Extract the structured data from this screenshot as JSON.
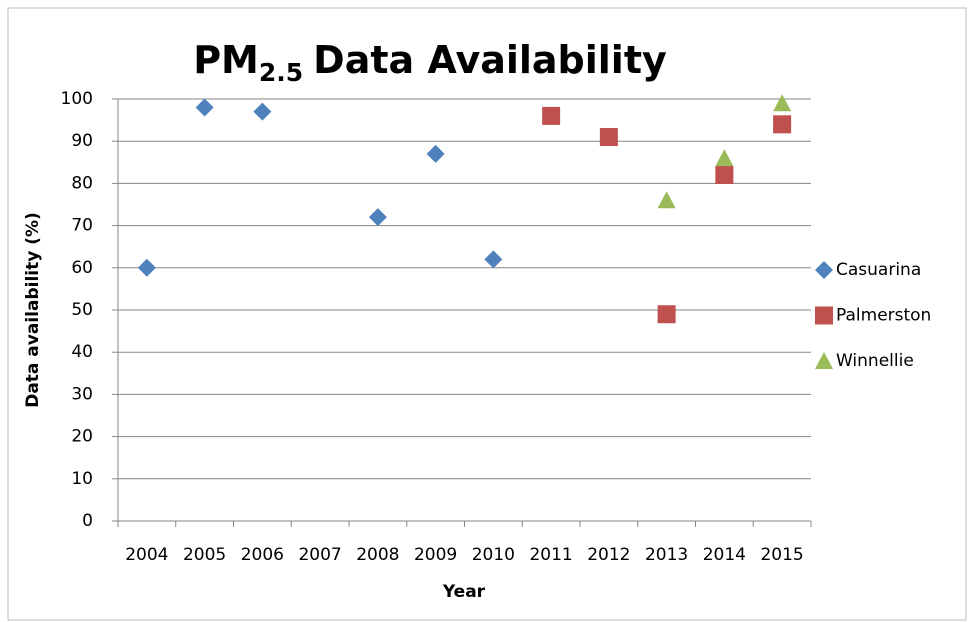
{
  "chart_data": {
    "type": "scatter",
    "title": [
      "PM",
      "2.5",
      "Data Availability"
    ],
    "x_label": "Year",
    "y_label": "Data availability (%)",
    "categories": [
      "2004",
      "2005",
      "2006",
      "2007",
      "2008",
      "2009",
      "2010",
      "2011",
      "2012",
      "2013",
      "2014",
      "2015"
    ],
    "series": [
      {
        "name": "Casuarina",
        "color": "#4f81bd",
        "marker": "diamond",
        "values": [
          60,
          98,
          97,
          null,
          72,
          87,
          62,
          null,
          null,
          null,
          null,
          null
        ]
      },
      {
        "name": "Palmerston",
        "color": "#c0504d",
        "marker": "square",
        "values": [
          null,
          null,
          null,
          null,
          null,
          null,
          null,
          96,
          91,
          49,
          82,
          94
        ]
      },
      {
        "name": "Winnellie",
        "color": "#9bbb59",
        "marker": "triangle",
        "values": [
          null,
          null,
          null,
          null,
          null,
          null,
          null,
          null,
          null,
          76,
          86,
          99
        ]
      }
    ],
    "ylim": [
      0,
      100
    ],
    "yticks": [
      0,
      10,
      20,
      30,
      40,
      50,
      60,
      70,
      80,
      90,
      100
    ],
    "grid": true,
    "legend": "right"
  }
}
